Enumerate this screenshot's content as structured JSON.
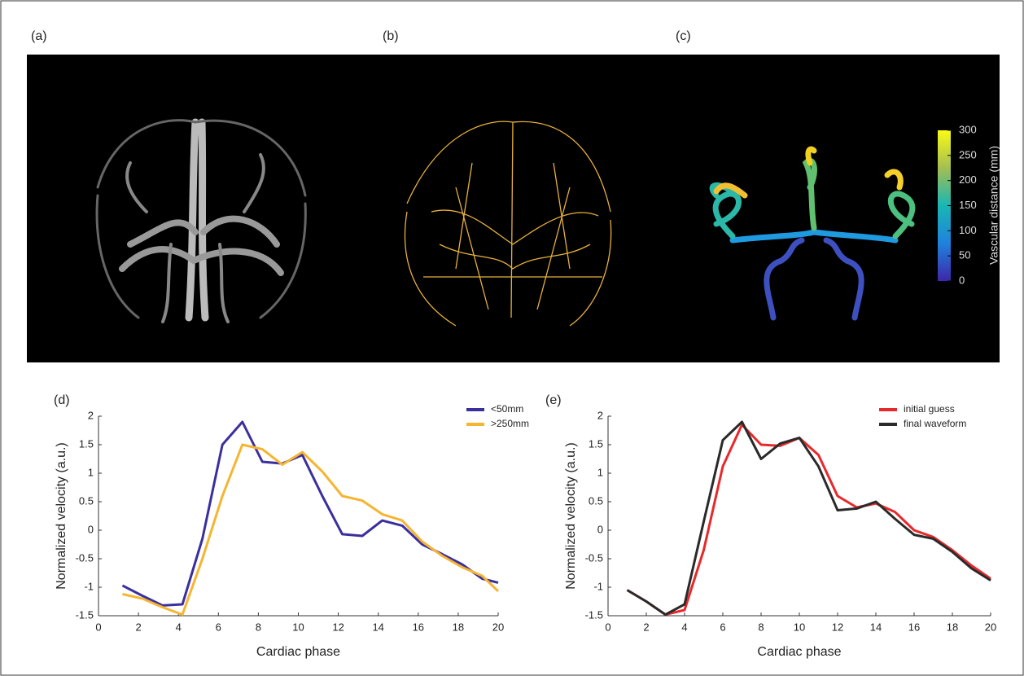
{
  "panel_labels": [
    "(a)",
    "(b)",
    "(c)",
    "(d)",
    "(e)"
  ],
  "colorbar": {
    "label": "Vascular distance (mm)",
    "lim": [
      0,
      300
    ],
    "ticks": [
      0,
      50,
      100,
      150,
      200,
      250,
      300
    ]
  },
  "chart_data": [
    {
      "type": "line",
      "xlabel": "Cardiac phase",
      "ylabel": "Normalized velocity (a.u.)",
      "x": [
        1.2,
        2.2,
        3.2,
        4.2,
        5.2,
        6.2,
        7.2,
        8.2,
        9.2,
        10.2,
        11.2,
        12.2,
        13.2,
        14.2,
        15.2,
        16.2,
        17.2,
        18.2,
        19.2,
        20
      ],
      "series": [
        {
          "name": "<50mm",
          "color": "#3b2f9e",
          "values": [
            -0.97,
            -1.15,
            -1.32,
            -1.3,
            -0.15,
            1.5,
            1.9,
            1.2,
            1.17,
            1.32,
            0.6,
            -0.07,
            -0.1,
            0.17,
            0.08,
            -0.25,
            -0.42,
            -0.6,
            -0.85,
            -0.92
          ]
        },
        {
          "name": ">250mm",
          "color": "#f5b531",
          "values": [
            -1.12,
            -1.2,
            -1.35,
            -1.48,
            -0.5,
            0.6,
            1.5,
            1.42,
            1.15,
            1.37,
            1.03,
            0.6,
            0.52,
            0.28,
            0.17,
            -0.2,
            -0.45,
            -0.65,
            -0.8,
            -1.07
          ]
        }
      ],
      "xlim": [
        0,
        20
      ],
      "xticks": [
        0,
        2,
        4,
        6,
        8,
        10,
        12,
        14,
        16,
        18,
        20
      ],
      "ylim": [
        -1.5,
        2
      ],
      "yticks": [
        -1.5,
        -1,
        -0.5,
        0,
        0.5,
        1,
        1.5,
        2
      ],
      "legend": "upper right"
    },
    {
      "type": "line",
      "xlabel": "Cardiac phase",
      "ylabel": "Normalized velocity (a.u.)",
      "x": [
        1,
        2,
        3,
        4,
        5,
        6,
        7,
        8,
        9,
        10,
        11,
        12,
        13,
        14,
        15,
        16,
        17,
        18,
        19,
        20
      ],
      "series": [
        {
          "name": "initial guess",
          "color": "#e8292b",
          "values": [
            -1.05,
            -1.25,
            -1.48,
            -1.4,
            -0.35,
            1.12,
            1.85,
            1.5,
            1.48,
            1.62,
            1.32,
            0.6,
            0.4,
            0.47,
            0.32,
            0.0,
            -0.12,
            -0.35,
            -0.62,
            -0.85
          ]
        },
        {
          "name": "final waveform",
          "color": "#2a2a2a",
          "values": [
            -1.05,
            -1.25,
            -1.48,
            -1.3,
            0.15,
            1.58,
            1.9,
            1.25,
            1.52,
            1.62,
            1.12,
            0.35,
            0.38,
            0.5,
            0.2,
            -0.08,
            -0.15,
            -0.38,
            -0.67,
            -0.88
          ]
        }
      ],
      "xlim": [
        0,
        20
      ],
      "xticks": [
        0,
        2,
        4,
        6,
        8,
        10,
        12,
        14,
        16,
        18,
        20
      ],
      "ylim": [
        -1.5,
        2
      ],
      "yticks": [
        -1.5,
        -1,
        -0.5,
        0,
        0.5,
        1,
        1.5,
        2
      ],
      "legend": "upper right"
    }
  ]
}
